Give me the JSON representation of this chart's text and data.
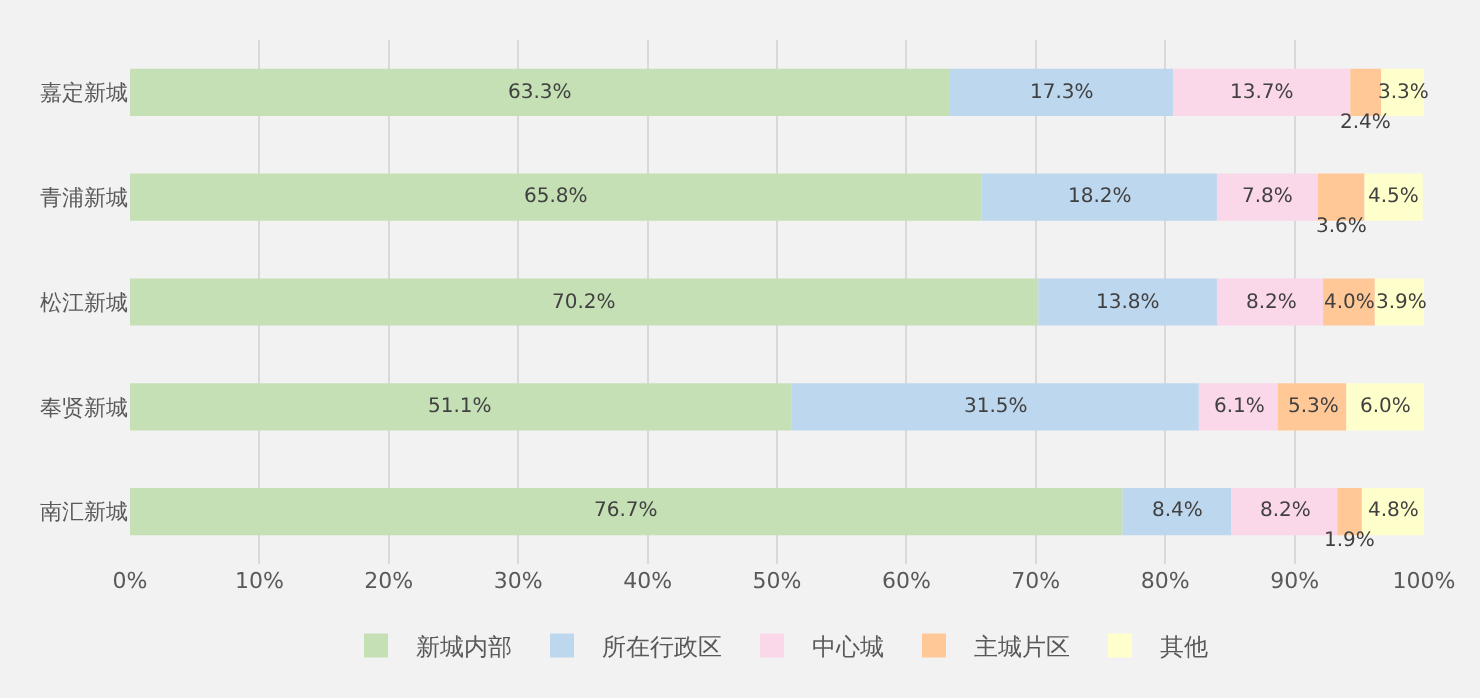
{
  "chart_data": {
    "type": "bar",
    "orientation": "horizontal",
    "stacked": true,
    "categories": [
      "嘉定新城",
      "青浦新城",
      "松江新城",
      "奉贤新城",
      "南汇新城"
    ],
    "series": [
      {
        "name": "新城内部",
        "color": "#c5e0b4",
        "values": [
          63.3,
          65.8,
          70.2,
          51.1,
          76.7
        ],
        "value_labels": [
          "63.3%",
          "65.8%",
          "70.2%",
          "51.1%",
          "76.7%"
        ]
      },
      {
        "name": "所在行政区",
        "color": "#bdd7ee",
        "values": [
          17.3,
          18.2,
          13.8,
          31.5,
          8.4
        ],
        "value_labels": [
          "17.3%",
          "18.2%",
          "13.8%",
          "31.5%",
          "8.4%"
        ]
      },
      {
        "name": "中心城",
        "color": "#fad7e9",
        "values": [
          13.7,
          7.8,
          8.2,
          6.1,
          8.2
        ],
        "value_labels": [
          "13.7%",
          "7.8%",
          "8.2%",
          "6.1%",
          "8.2%"
        ]
      },
      {
        "name": "主城片区",
        "color": "#ffc896",
        "values": [
          2.4,
          3.6,
          4.0,
          5.3,
          1.9
        ],
        "value_labels": [
          "2.4%",
          "3.6%",
          "4.0%",
          "5.3%",
          "1.9%"
        ]
      },
      {
        "name": "其他",
        "color": "#ffffcc",
        "values": [
          3.3,
          4.5,
          3.9,
          6.0,
          4.8
        ],
        "value_labels": [
          "3.3%",
          "4.5%",
          "3.9%",
          "6.0%",
          "4.8%"
        ]
      }
    ],
    "xlim": [
      0,
      100
    ],
    "xticks": [
      {
        "value": 0,
        "label": "0%"
      },
      {
        "value": 10,
        "label": "10%"
      },
      {
        "value": 20,
        "label": "20%"
      },
      {
        "value": 30,
        "label": "30%"
      },
      {
        "value": 40,
        "label": "40%"
      },
      {
        "value": 50,
        "label": "50%"
      },
      {
        "value": 60,
        "label": "60%"
      },
      {
        "value": 70,
        "label": "70%"
      },
      {
        "value": 80,
        "label": "80%"
      },
      {
        "value": 90,
        "label": "90%"
      },
      {
        "value": 100,
        "label": "100%"
      }
    ],
    "grid": "x",
    "legend": "bottom"
  }
}
